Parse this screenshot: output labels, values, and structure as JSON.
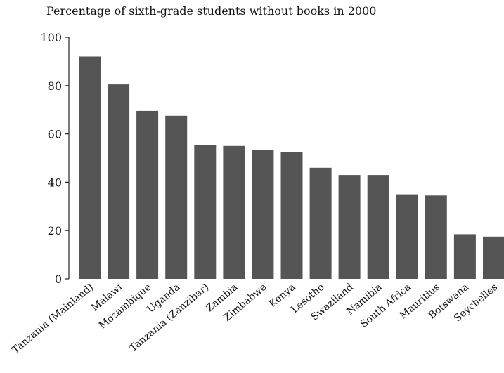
{
  "chart_data": {
    "type": "bar",
    "title": "Percentage of sixth-grade students without books in 2000",
    "xlabel": "",
    "ylabel": "",
    "ylim": [
      0,
      100
    ],
    "yticks": [
      0,
      20,
      40,
      60,
      80,
      100
    ],
    "grid": false,
    "categories": [
      "Tanzania (Mainland)",
      "Malawi",
      "Mozambique",
      "Uganda",
      "Tanzania (Zanzibar)",
      "Zambia",
      "Zimbabwe",
      "Kenya",
      "Lesotho",
      "Swaziland",
      "Namibia",
      "South Africa",
      "Mauritius",
      "Botswana",
      "Seychelles"
    ],
    "values": [
      92,
      80.5,
      69.5,
      67.5,
      55.5,
      55,
      53.5,
      52.5,
      46,
      43,
      43,
      35,
      34.5,
      18.5,
      17.5
    ],
    "bar_color": "#555555"
  }
}
